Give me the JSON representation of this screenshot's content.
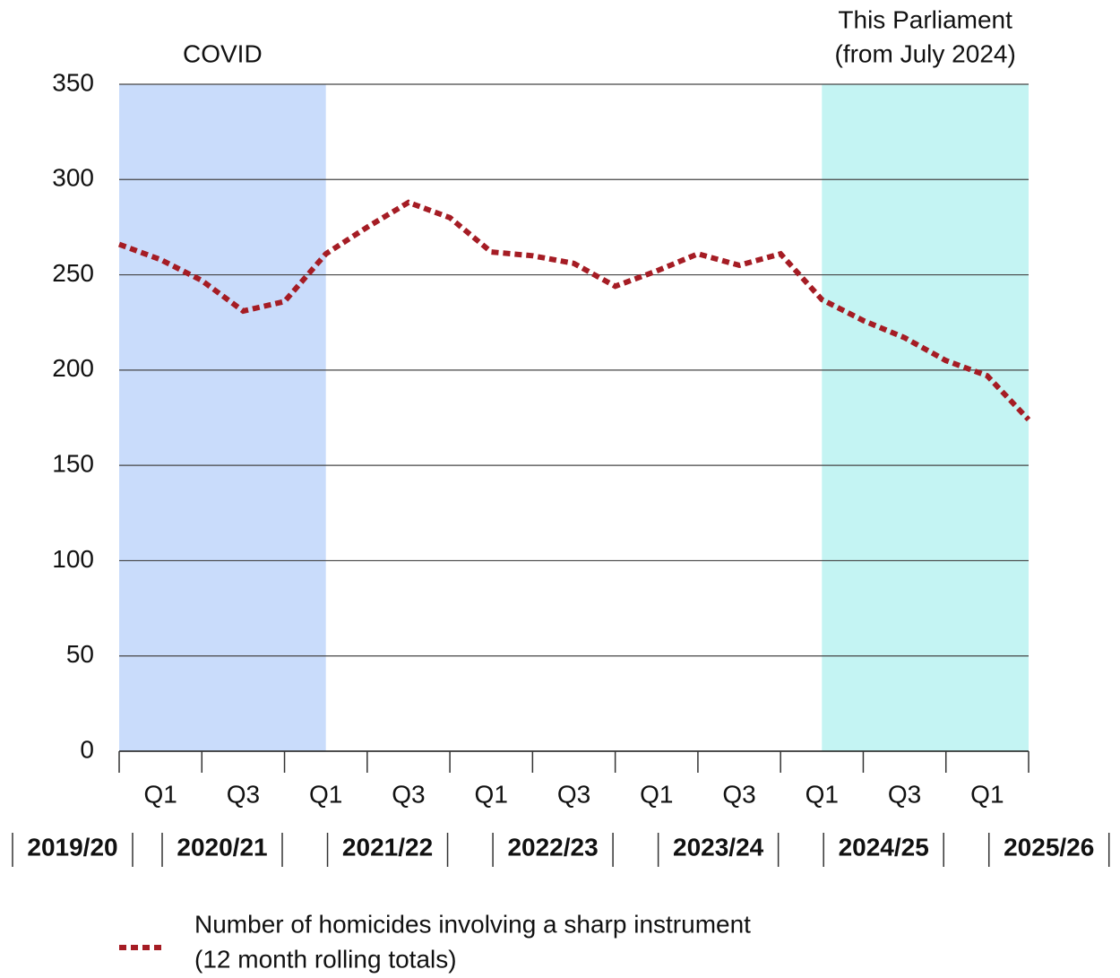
{
  "chart_data": {
    "type": "line",
    "categories": [
      null,
      "Q1",
      null,
      "Q3",
      null,
      "Q1",
      null,
      "Q3",
      null,
      "Q1",
      null,
      "Q3",
      null,
      "Q1",
      null,
      "Q3",
      null,
      "Q1",
      null,
      "Q3",
      null,
      "Q1",
      null
    ],
    "years": [
      "2019/20",
      "2020/21",
      "2021/22",
      "2022/23",
      "2023/24",
      "2024/25",
      "2025/26"
    ],
    "series": [
      {
        "name": [
          "Number of homicides involving a sharp instrument",
          "(12 month rolling totals)"
        ],
        "color": "#a51c24",
        "values": [
          266,
          258,
          247,
          231,
          236,
          261,
          275,
          288,
          280,
          262,
          260,
          256,
          244,
          252,
          261,
          255,
          261,
          237,
          226,
          217,
          205,
          197,
          174
        ]
      }
    ],
    "bands": [
      {
        "label": [
          "COVID"
        ],
        "from": 0,
        "to": 5,
        "color": "#c9dcfb"
      },
      {
        "label": [
          "This Parliament",
          "(from July 2024)"
        ],
        "from": 17,
        "to": 22,
        "color": "#c4f4f3"
      }
    ],
    "ylim": [
      0,
      350
    ],
    "yticks": [
      0,
      50,
      100,
      150,
      200,
      250,
      300,
      350
    ],
    "grid": true
  }
}
